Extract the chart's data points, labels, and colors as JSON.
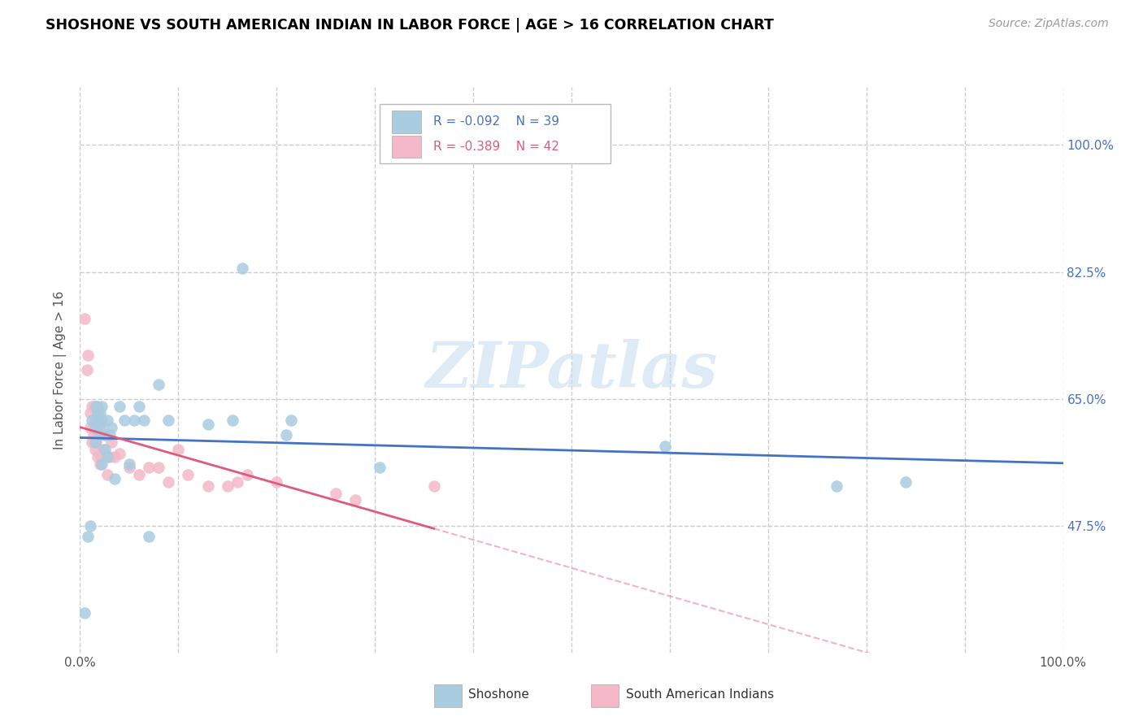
{
  "title": "SHOSHONE VS SOUTH AMERICAN INDIAN IN LABOR FORCE | AGE > 16 CORRELATION CHART",
  "source": "Source: ZipAtlas.com",
  "ylabel": "In Labor Force | Age > 16",
  "xlim": [
    0,
    1.0
  ],
  "ylim": [
    0.3,
    1.08
  ],
  "watermark": "ZIPatlas",
  "legend_blue_r": "R = -0.092",
  "legend_blue_n": "N = 39",
  "legend_pink_r": "R = -0.389",
  "legend_pink_n": "N = 42",
  "legend_blue_label": "Shoshone",
  "legend_pink_label": "South American Indians",
  "blue_color": "#a8cce0",
  "pink_color": "#f4b8c8",
  "blue_line_color": "#4472c4",
  "pink_line_color": "#e05a7a",
  "shoshone_x": [
    0.005,
    0.008,
    0.01,
    0.012,
    0.015,
    0.015,
    0.016,
    0.018,
    0.018,
    0.02,
    0.02,
    0.02,
    0.022,
    0.022,
    0.025,
    0.025,
    0.028,
    0.028,
    0.03,
    0.032,
    0.035,
    0.04,
    0.045,
    0.05,
    0.055,
    0.06,
    0.065,
    0.07,
    0.08,
    0.09,
    0.13,
    0.155,
    0.165,
    0.21,
    0.215,
    0.305,
    0.595,
    0.77,
    0.84
  ],
  "shoshone_y": [
    0.355,
    0.46,
    0.475,
    0.62,
    0.59,
    0.61,
    0.64,
    0.62,
    0.63,
    0.6,
    0.615,
    0.63,
    0.56,
    0.64,
    0.58,
    0.6,
    0.57,
    0.62,
    0.6,
    0.61,
    0.54,
    0.64,
    0.62,
    0.56,
    0.62,
    0.64,
    0.62,
    0.46,
    0.67,
    0.62,
    0.615,
    0.62,
    0.83,
    0.6,
    0.62,
    0.555,
    0.585,
    0.53,
    0.535
  ],
  "sa_indian_x": [
    0.005,
    0.007,
    0.008,
    0.01,
    0.01,
    0.012,
    0.012,
    0.014,
    0.015,
    0.015,
    0.015,
    0.016,
    0.016,
    0.018,
    0.018,
    0.018,
    0.02,
    0.02,
    0.022,
    0.022,
    0.024,
    0.025,
    0.028,
    0.03,
    0.032,
    0.035,
    0.04,
    0.05,
    0.06,
    0.07,
    0.08,
    0.09,
    0.1,
    0.11,
    0.13,
    0.15,
    0.16,
    0.17,
    0.2,
    0.26,
    0.28,
    0.36
  ],
  "sa_indian_y": [
    0.76,
    0.69,
    0.71,
    0.61,
    0.63,
    0.59,
    0.64,
    0.6,
    0.58,
    0.61,
    0.64,
    0.59,
    0.62,
    0.57,
    0.6,
    0.64,
    0.56,
    0.61,
    0.57,
    0.62,
    0.58,
    0.6,
    0.545,
    0.57,
    0.59,
    0.57,
    0.575,
    0.555,
    0.545,
    0.555,
    0.555,
    0.535,
    0.58,
    0.545,
    0.53,
    0.53,
    0.535,
    0.545,
    0.535,
    0.52,
    0.51,
    0.53
  ],
  "grid_color": "#cccccc",
  "background_color": "#ffffff",
  "ytick_positions": [
    0.475,
    0.65,
    0.825,
    1.0
  ],
  "ytick_labels": [
    "47.5%",
    "65.0%",
    "82.5%",
    "100.0%"
  ],
  "xtick_positions": [
    0.0,
    0.1,
    0.2,
    0.3,
    0.4,
    0.5,
    0.6,
    0.7,
    0.8,
    0.9,
    1.0
  ],
  "xtick_labels_shown": {
    "0.0": "0.0%",
    "1.0": "100.0%"
  }
}
